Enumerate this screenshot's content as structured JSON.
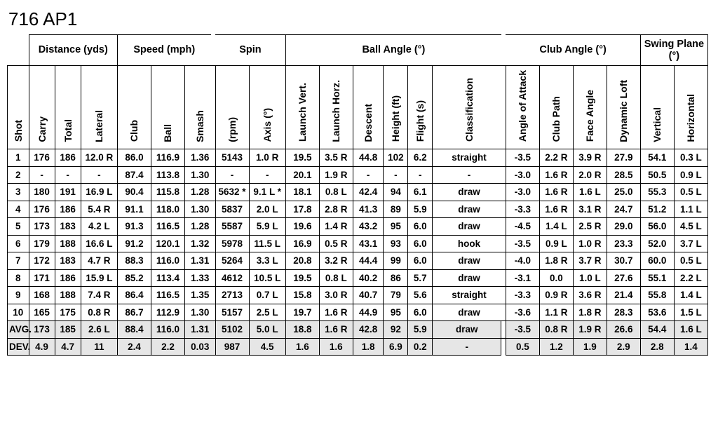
{
  "title": "716 AP1",
  "groups": {
    "distance": "Distance (yds)",
    "speed": "Speed (mph)",
    "spin": "Spin",
    "ballangle": "Ball Angle (°)",
    "clubangle": "Club Angle (°)",
    "swing": "Swing Plane (°)"
  },
  "cols": [
    "Shot",
    "Carry",
    "Total",
    "Lateral",
    "Club",
    "Ball",
    "Smash",
    "(rpm)",
    "Axis (°)",
    "Launch Vert.",
    "Launch Horz.",
    "Descent",
    "Height (ft)",
    "Flight (s)",
    "Classification",
    "Angle of Attack",
    "Club Path",
    "Face Angle",
    "Dynamic Loft",
    "Vertical",
    "Horizontal"
  ],
  "rows": [
    {
      "shot": "1",
      "carry": "176",
      "total": "186",
      "lat": "12.0 R",
      "club": "86.0",
      "ball": "116.9",
      "smash": "1.36",
      "rpm": "5143",
      "axis": "1.0 R",
      "lv": "19.5",
      "lh": "3.5 R",
      "desc": "44.8",
      "ht": "102",
      "fl": "6.2",
      "cls": "straight",
      "aoa": "-3.5",
      "cp": "2.2 R",
      "fa": "3.9 R",
      "dl": "27.9",
      "v": "54.1",
      "h": "0.3 L"
    },
    {
      "shot": "2",
      "carry": "-",
      "total": "-",
      "lat": "-",
      "club": "87.4",
      "ball": "113.8",
      "smash": "1.30",
      "rpm": "-",
      "axis": "-",
      "lv": "20.1",
      "lh": "1.9 R",
      "desc": "-",
      "ht": "-",
      "fl": "-",
      "cls": "-",
      "aoa": "-3.0",
      "cp": "1.6 R",
      "fa": "2.0 R",
      "dl": "28.5",
      "v": "50.5",
      "h": "0.9 L"
    },
    {
      "shot": "3",
      "carry": "180",
      "total": "191",
      "lat": "16.9 L",
      "club": "90.4",
      "ball": "115.8",
      "smash": "1.28",
      "rpm": "5632 *",
      "axis": "9.1 L *",
      "lv": "18.1",
      "lh": "0.8 L",
      "desc": "42.4",
      "ht": "94",
      "fl": "6.1",
      "cls": "draw",
      "aoa": "-3.0",
      "cp": "1.6 R",
      "fa": "1.6 L",
      "dl": "25.0",
      "v": "55.3",
      "h": "0.5 L"
    },
    {
      "shot": "4",
      "carry": "176",
      "total": "186",
      "lat": "5.4 R",
      "club": "91.1",
      "ball": "118.0",
      "smash": "1.30",
      "rpm": "5837",
      "axis": "2.0 L",
      "lv": "17.8",
      "lh": "2.8 R",
      "desc": "41.3",
      "ht": "89",
      "fl": "5.9",
      "cls": "draw",
      "aoa": "-3.3",
      "cp": "1.6 R",
      "fa": "3.1 R",
      "dl": "24.7",
      "v": "51.2",
      "h": "1.1 L"
    },
    {
      "shot": "5",
      "carry": "173",
      "total": "183",
      "lat": "4.2 L",
      "club": "91.3",
      "ball": "116.5",
      "smash": "1.28",
      "rpm": "5587",
      "axis": "5.9 L",
      "lv": "19.6",
      "lh": "1.4 R",
      "desc": "43.2",
      "ht": "95",
      "fl": "6.0",
      "cls": "draw",
      "aoa": "-4.5",
      "cp": "1.4 L",
      "fa": "2.5 R",
      "dl": "29.0",
      "v": "56.0",
      "h": "4.5 L"
    },
    {
      "shot": "6",
      "carry": "179",
      "total": "188",
      "lat": "16.6 L",
      "club": "91.2",
      "ball": "120.1",
      "smash": "1.32",
      "rpm": "5978",
      "axis": "11.5 L",
      "lv": "16.9",
      "lh": "0.5 R",
      "desc": "43.1",
      "ht": "93",
      "fl": "6.0",
      "cls": "hook",
      "aoa": "-3.5",
      "cp": "0.9 L",
      "fa": "1.0 R",
      "dl": "23.3",
      "v": "52.0",
      "h": "3.7 L"
    },
    {
      "shot": "7",
      "carry": "172",
      "total": "183",
      "lat": "4.7 R",
      "club": "88.3",
      "ball": "116.0",
      "smash": "1.31",
      "rpm": "5264",
      "axis": "3.3 L",
      "lv": "20.8",
      "lh": "3.2 R",
      "desc": "44.4",
      "ht": "99",
      "fl": "6.0",
      "cls": "draw",
      "aoa": "-4.0",
      "cp": "1.8 R",
      "fa": "3.7 R",
      "dl": "30.7",
      "v": "60.0",
      "h": "0.5 L"
    },
    {
      "shot": "8",
      "carry": "171",
      "total": "186",
      "lat": "15.9 L",
      "club": "85.2",
      "ball": "113.4",
      "smash": "1.33",
      "rpm": "4612",
      "axis": "10.5 L",
      "lv": "19.5",
      "lh": "0.8 L",
      "desc": "40.2",
      "ht": "86",
      "fl": "5.7",
      "cls": "draw",
      "aoa": "-3.1",
      "cp": "0.0",
      "fa": "1.0 L",
      "dl": "27.6",
      "v": "55.1",
      "h": "2.2 L"
    },
    {
      "shot": "9",
      "carry": "168",
      "total": "188",
      "lat": "7.4 R",
      "club": "86.4",
      "ball": "116.5",
      "smash": "1.35",
      "rpm": "2713",
      "axis": "0.7 L",
      "lv": "15.8",
      "lh": "3.0 R",
      "desc": "40.7",
      "ht": "79",
      "fl": "5.6",
      "cls": "straight",
      "aoa": "-3.3",
      "cp": "0.9 R",
      "fa": "3.6 R",
      "dl": "21.4",
      "v": "55.8",
      "h": "1.4 L"
    },
    {
      "shot": "10",
      "carry": "165",
      "total": "175",
      "lat": "0.8 R",
      "club": "86.7",
      "ball": "112.9",
      "smash": "1.30",
      "rpm": "5157",
      "axis": "2.5 L",
      "lv": "19.7",
      "lh": "1.6 R",
      "desc": "44.9",
      "ht": "95",
      "fl": "6.0",
      "cls": "draw",
      "aoa": "-3.6",
      "cp": "1.1 R",
      "fa": "1.8 R",
      "dl": "28.3",
      "v": "53.6",
      "h": "1.5 L"
    }
  ],
  "avg": {
    "shot": "AVG.",
    "carry": "173",
    "total": "185",
    "lat": "2.6 L",
    "club": "88.4",
    "ball": "116.0",
    "smash": "1.31",
    "rpm": "5102",
    "axis": "5.0 L",
    "lv": "18.8",
    "lh": "1.6 R",
    "desc": "42.8",
    "ht": "92",
    "fl": "5.9",
    "cls": "draw",
    "aoa": "-3.5",
    "cp": "0.8 R",
    "fa": "1.9 R",
    "dl": "26.6",
    "v": "54.4",
    "h": "1.6 L"
  },
  "dev": {
    "shot": "DEV.",
    "carry": "4.9",
    "total": "4.7",
    "lat": "11",
    "club": "2.4",
    "ball": "2.2",
    "smash": "0.03",
    "rpm": "987",
    "axis": "4.5",
    "lv": "1.6",
    "lh": "1.6",
    "desc": "1.8",
    "ht": "6.9",
    "fl": "0.2",
    "cls": "-",
    "aoa": "0.5",
    "cp": "1.2",
    "fa": "1.9",
    "dl": "2.9",
    "v": "2.8",
    "h": "1.4"
  },
  "colors": {
    "bg": "#ffffff",
    "text": "#000000",
    "shaded": "#e6e6e6",
    "border": "#000000"
  },
  "fontsize": {
    "title": 26,
    "header": 14,
    "cell": 13.5
  }
}
